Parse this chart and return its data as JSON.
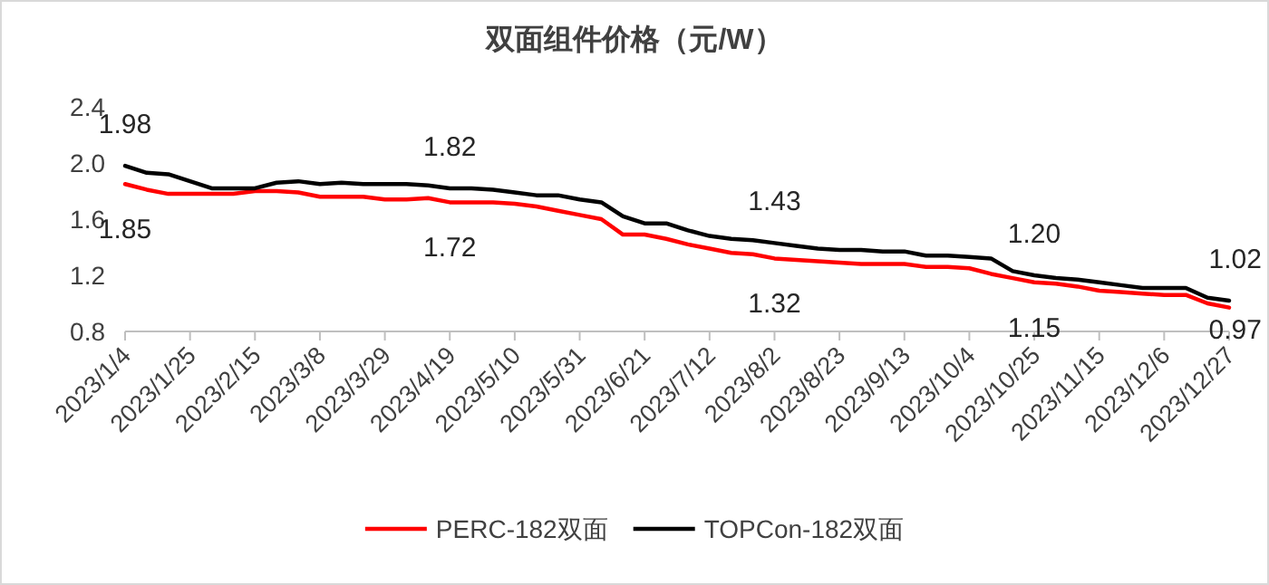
{
  "chart_data": {
    "type": "line",
    "title": "双面组件价格（元/W）",
    "categories": [
      "2023/1/4",
      null,
      null,
      "2023/1/25",
      null,
      null,
      "2023/2/15",
      null,
      null,
      "2023/3/8",
      null,
      null,
      "2023/3/29",
      null,
      null,
      "2023/4/19",
      null,
      null,
      "2023/5/10",
      null,
      null,
      "2023/5/31",
      null,
      null,
      "2023/6/21",
      null,
      null,
      "2023/7/12",
      null,
      null,
      "2023/8/2",
      null,
      null,
      "2023/8/23",
      null,
      null,
      "2023/9/13",
      null,
      null,
      "2023/10/4",
      null,
      null,
      "2023/10/25",
      null,
      null,
      "2023/11/15",
      null,
      null,
      "2023/12/6",
      null,
      null,
      "2023/12/27"
    ],
    "series": [
      {
        "name": "PERC-182双面",
        "color": "#ff0000",
        "values": [
          1.85,
          1.81,
          1.78,
          1.78,
          1.78,
          1.78,
          1.8,
          1.8,
          1.79,
          1.76,
          1.76,
          1.76,
          1.74,
          1.74,
          1.75,
          1.72,
          1.72,
          1.72,
          1.71,
          1.69,
          1.66,
          1.63,
          1.6,
          1.49,
          1.49,
          1.46,
          1.42,
          1.39,
          1.36,
          1.35,
          1.32,
          1.31,
          1.3,
          1.29,
          1.28,
          1.28,
          1.28,
          1.26,
          1.26,
          1.25,
          1.21,
          1.18,
          1.15,
          1.14,
          1.12,
          1.09,
          1.08,
          1.07,
          1.06,
          1.06,
          1.0,
          0.97
        ],
        "value_labels": [
          "1.85",
          null,
          null,
          null,
          null,
          null,
          null,
          null,
          null,
          null,
          null,
          null,
          null,
          null,
          null,
          "1.72",
          null,
          null,
          null,
          null,
          null,
          null,
          null,
          null,
          null,
          null,
          null,
          null,
          null,
          null,
          "1.32",
          null,
          null,
          null,
          null,
          null,
          null,
          null,
          null,
          null,
          null,
          null,
          "1.15",
          null,
          null,
          null,
          null,
          null,
          null,
          null,
          null,
          "0.97"
        ]
      },
      {
        "name": "TOPCon-182双面",
        "color": "#000000",
        "values": [
          1.98,
          1.93,
          1.92,
          1.87,
          1.82,
          1.82,
          1.82,
          1.86,
          1.87,
          1.85,
          1.86,
          1.85,
          1.85,
          1.85,
          1.84,
          1.82,
          1.82,
          1.81,
          1.79,
          1.77,
          1.77,
          1.74,
          1.72,
          1.62,
          1.57,
          1.57,
          1.52,
          1.48,
          1.46,
          1.45,
          1.43,
          1.41,
          1.39,
          1.38,
          1.38,
          1.37,
          1.37,
          1.34,
          1.34,
          1.33,
          1.32,
          1.23,
          1.2,
          1.18,
          1.17,
          1.15,
          1.13,
          1.11,
          1.11,
          1.11,
          1.04,
          1.02
        ],
        "value_labels": [
          "1.98",
          null,
          null,
          null,
          null,
          null,
          null,
          null,
          null,
          null,
          null,
          null,
          null,
          null,
          null,
          "1.82",
          null,
          null,
          null,
          null,
          null,
          null,
          null,
          null,
          null,
          null,
          null,
          null,
          null,
          null,
          "1.43",
          null,
          null,
          null,
          null,
          null,
          null,
          null,
          null,
          null,
          null,
          null,
          "1.20",
          null,
          null,
          null,
          null,
          null,
          null,
          null,
          null,
          "1.02"
        ]
      }
    ],
    "ylim": [
      0.8,
      2.4
    ],
    "yticks": [
      {
        "value": 0.8,
        "label": "0.8"
      },
      {
        "value": 1.2,
        "label": "1.2"
      },
      {
        "value": 1.6,
        "label": "1.6"
      },
      {
        "value": 2.0,
        "label": "2.0"
      },
      {
        "value": 2.4,
        "label": "2.4"
      }
    ],
    "legend": "bottom",
    "grid": false
  }
}
